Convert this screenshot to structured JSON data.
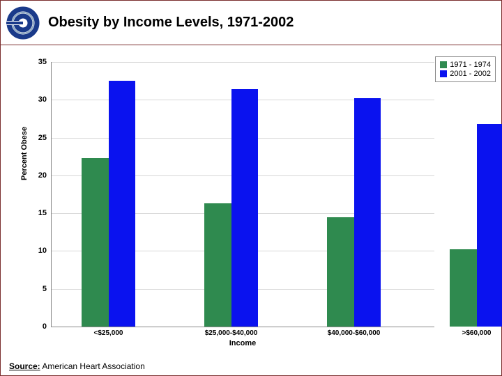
{
  "header": {
    "title": "Obesity by Income Levels, 1971-2002"
  },
  "logo": {
    "primary_color": "#1a3a8a",
    "accent_color": "#8aa5bf"
  },
  "chart": {
    "type": "bar",
    "ylabel": "Percent Obese",
    "xlabel": "Income",
    "ylim": [
      0,
      35
    ],
    "ytick_step": 5,
    "yticks": [
      0,
      5,
      10,
      15,
      20,
      25,
      30,
      35
    ],
    "background_color": "#ffffff",
    "grid_color": "#d6d6d6",
    "axis_color": "#888888",
    "tick_fontsize": 11,
    "label_fontsize": 11,
    "categories": [
      "<$25,000",
      "$25,000-$40,000",
      "$40,000-$60,000",
      ">$60,000"
    ],
    "series": [
      {
        "name": "1971 - 1974",
        "color": "#2f8a4f",
        "values": [
          22.3,
          16.3,
          14.5,
          10.2
        ]
      },
      {
        "name": "2001 - 2002",
        "color": "#0a12ef",
        "values": [
          32.5,
          31.4,
          30.2,
          26.8
        ]
      }
    ],
    "bar_width_pct": 7.0,
    "group_gap_pct": 18.0,
    "group_start_pct": 8.0
  },
  "legend": {
    "items": [
      {
        "label": "1971 - 1974",
        "color": "#2f8a4f"
      },
      {
        "label": "2001 - 2002",
        "color": "#0a12ef"
      }
    ]
  },
  "source": {
    "label": "Source:",
    "text": "American Heart Association"
  },
  "frame_border_color": "#7a2d2d"
}
